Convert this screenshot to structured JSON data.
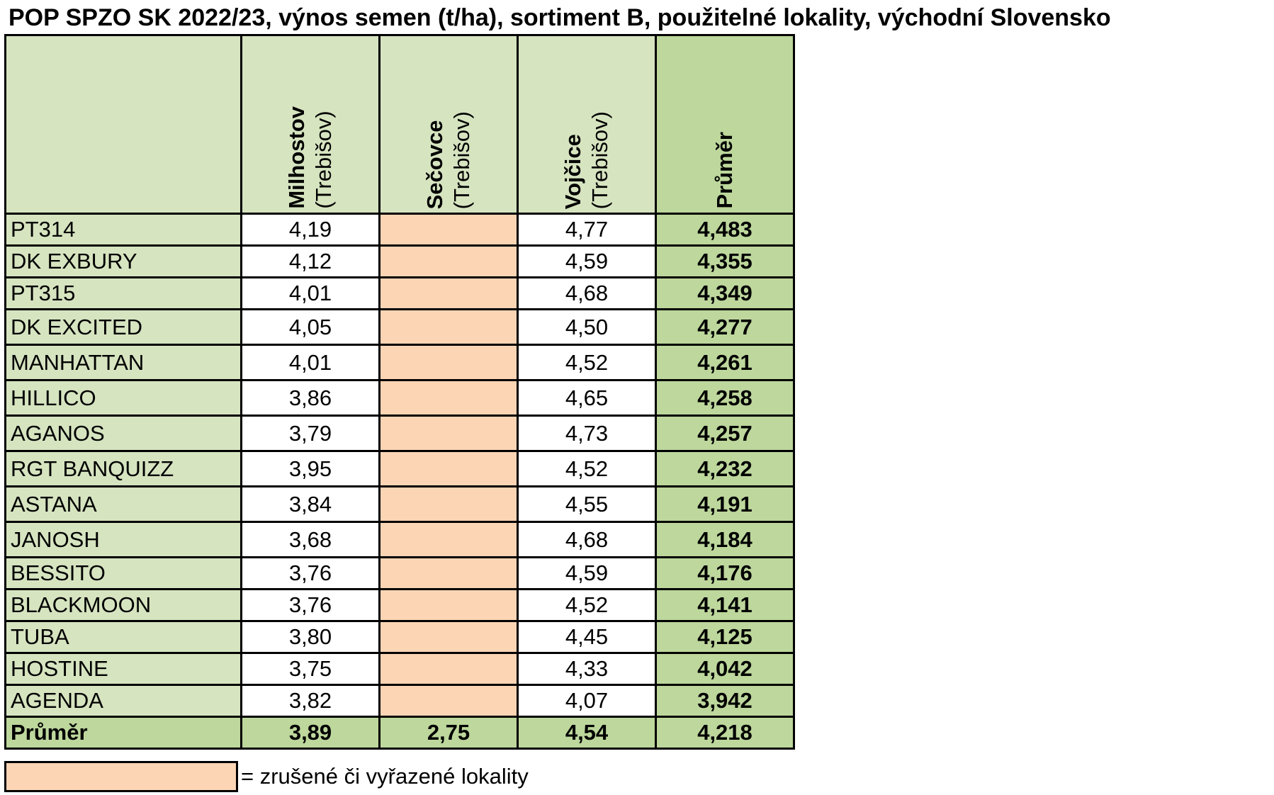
{
  "title": "POP SPZO SK 2022/23, výnos semen (t/ha), sortiment B, použitelné lokality, východní Slovensko",
  "colors": {
    "header_green": "#d6e4c0",
    "average_green": "#bdd79c",
    "excluded_peach": "#fcd5b5"
  },
  "columns": [
    {
      "name": "Milhostov",
      "district": "(Trebišov)"
    },
    {
      "name": "Sečovce",
      "district": "(Trebišov)"
    },
    {
      "name": "Vojčice",
      "district": "(Trebišov)"
    },
    {
      "name": "Průměr",
      "district": ""
    }
  ],
  "footer": {
    "label": "Průměr",
    "values": [
      "3,89",
      "2,75",
      "4,54",
      "4,218"
    ]
  },
  "legend": {
    "text": "= zrušené či vyřazené lokality"
  },
  "chart_data": {
    "type": "table",
    "title": "POP SPZO SK 2022/23, výnos semen (t/ha), sortiment B, použitelné lokality, východní Slovensko",
    "columns": [
      "Milhostov (Trebišov)",
      "Sečovce (Trebišov)",
      "Vojčice (Trebišov)",
      "Průměr"
    ],
    "excluded_columns": [
      "Sečovce (Trebišov)"
    ],
    "rows": [
      {
        "variety": "PT314",
        "Milhostov": "4,19",
        "Secovce": "",
        "Vojcice": "4,77",
        "Prumer": "4,483"
      },
      {
        "variety": "DK EXBURY",
        "Milhostov": "4,12",
        "Secovce": "",
        "Vojcice": "4,59",
        "Prumer": "4,355"
      },
      {
        "variety": "PT315",
        "Milhostov": "4,01",
        "Secovce": "",
        "Vojcice": "4,68",
        "Prumer": "4,349"
      },
      {
        "variety": "DK EXCITED",
        "Milhostov": "4,05",
        "Secovce": "",
        "Vojcice": "4,50",
        "Prumer": "4,277"
      },
      {
        "variety": "MANHATTAN",
        "Milhostov": "4,01",
        "Secovce": "",
        "Vojcice": "4,52",
        "Prumer": "4,261"
      },
      {
        "variety": "HILLICO",
        "Milhostov": "3,86",
        "Secovce": "",
        "Vojcice": "4,65",
        "Prumer": "4,258"
      },
      {
        "variety": "AGANOS",
        "Milhostov": "3,79",
        "Secovce": "",
        "Vojcice": "4,73",
        "Prumer": "4,257"
      },
      {
        "variety": "RGT BANQUIZZ",
        "Milhostov": "3,95",
        "Secovce": "",
        "Vojcice": "4,52",
        "Prumer": "4,232"
      },
      {
        "variety": "ASTANA",
        "Milhostov": "3,84",
        "Secovce": "",
        "Vojcice": "4,55",
        "Prumer": "4,191"
      },
      {
        "variety": "JANOSH",
        "Milhostov": "3,68",
        "Secovce": "",
        "Vojcice": "4,68",
        "Prumer": "4,184"
      },
      {
        "variety": "BESSITO",
        "Milhostov": "3,76",
        "Secovce": "",
        "Vojcice": "4,59",
        "Prumer": "4,176"
      },
      {
        "variety": "BLACKMOON",
        "Milhostov": "3,76",
        "Secovce": "",
        "Vojcice": "4,52",
        "Prumer": "4,141"
      },
      {
        "variety": "TUBA",
        "Milhostov": "3,80",
        "Secovce": "",
        "Vojcice": "4,45",
        "Prumer": "4,125"
      },
      {
        "variety": "HOSTINE",
        "Milhostov": "3,75",
        "Secovce": "",
        "Vojcice": "4,33",
        "Prumer": "4,042"
      },
      {
        "variety": "AGENDA",
        "Milhostov": "3,82",
        "Secovce": "",
        "Vojcice": "4,07",
        "Prumer": "3,942"
      }
    ]
  }
}
